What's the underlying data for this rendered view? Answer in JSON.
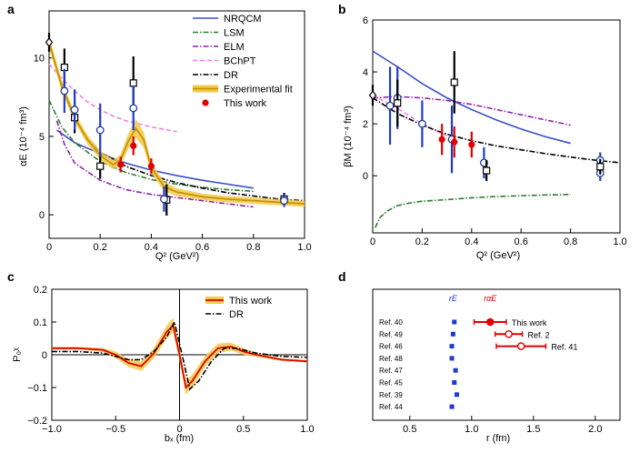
{
  "chart_data": [
    {
      "panel": "a",
      "type": "line",
      "xlabel": "Q² (GeV²)",
      "ylabel": "αE (10⁻⁴ fm³)",
      "xlim": [
        0,
        1.0
      ],
      "ylim": [
        -1.5,
        13
      ],
      "xticks": [
        0,
        0.2,
        0.4,
        0.6,
        0.8,
        1.0
      ],
      "xtick_labels": [
        "0",
        "0.2",
        "0.4",
        "0.6",
        "0.8",
        "1.0"
      ],
      "yticks": [
        0,
        5,
        10
      ],
      "ytick_labels": [
        "0",
        "5",
        "10"
      ],
      "legend": [
        "NRQCM",
        "LSM",
        "ELM",
        "BChPT",
        "DR",
        "Experimental fit",
        "This work"
      ],
      "legend_colors": [
        "#3a4fc6",
        "#2e7d32",
        "#8e24aa",
        "#ee82ee",
        "#000000",
        "#e6b800",
        "#e00000"
      ],
      "series": [
        {
          "name": "NRQCM",
          "style": "solid",
          "color": "#3a4fc6",
          "x": [
            0.03,
            0.1,
            0.2,
            0.3,
            0.4,
            0.5,
            0.6,
            0.7,
            0.8
          ],
          "y": [
            5.4,
            4.6,
            3.9,
            3.3,
            2.85,
            2.5,
            2.2,
            1.95,
            1.7
          ]
        },
        {
          "name": "LSM",
          "style": "dashdot",
          "color": "#2e7d32",
          "x": [
            0,
            0.05,
            0.1,
            0.2,
            0.3,
            0.4,
            0.5,
            0.6,
            0.7,
            0.8
          ],
          "y": [
            7.3,
            5.6,
            4.6,
            3.4,
            2.7,
            2.25,
            1.95,
            1.75,
            1.6,
            1.5
          ]
        },
        {
          "name": "ELM",
          "style": "dashdot",
          "color": "#8e24aa",
          "x": [
            0.03,
            0.06,
            0.1,
            0.2,
            0.3,
            0.4,
            0.5,
            0.6,
            0.7,
            0.8
          ],
          "y": [
            6.0,
            4.5,
            3.3,
            2.2,
            1.6,
            1.3,
            1.1,
            0.9,
            0.7,
            0.5
          ]
        },
        {
          "name": "BChPT",
          "style": "dash",
          "color": "#ee82ee",
          "x": [
            0,
            0.05,
            0.1,
            0.15,
            0.2,
            0.25,
            0.3,
            0.35,
            0.4,
            0.45,
            0.5
          ],
          "y": [
            9.6,
            8.7,
            7.9,
            7.2,
            6.7,
            6.3,
            6.0,
            5.8,
            5.6,
            5.45,
            5.3
          ]
        },
        {
          "name": "DR",
          "style": "dashdot",
          "color": "#000000",
          "x": [
            0,
            0.05,
            0.1,
            0.15,
            0.2,
            0.3,
            0.4,
            0.5,
            0.6,
            0.7,
            0.8,
            0.9,
            1.0
          ],
          "y": [
            11.0,
            8.1,
            6.1,
            4.8,
            4.0,
            3.1,
            2.5,
            2.05,
            1.7,
            1.4,
            1.2,
            1.0,
            0.9
          ]
        },
        {
          "name": "Experimental fit",
          "style": "band",
          "color": "#e6b800",
          "x": [
            0,
            0.05,
            0.1,
            0.15,
            0.2,
            0.25,
            0.28,
            0.31,
            0.34,
            0.37,
            0.4,
            0.45,
            0.5,
            0.6,
            0.7,
            0.8,
            0.9,
            1.0
          ],
          "y": [
            11.0,
            8.2,
            6.2,
            4.8,
            3.8,
            3.2,
            3.5,
            4.7,
            5.5,
            4.8,
            3.0,
            1.8,
            1.45,
            1.15,
            1.0,
            0.9,
            0.8,
            0.7
          ],
          "band_halfwidth": [
            0.4,
            0.35,
            0.3,
            0.3,
            0.3,
            0.3,
            0.35,
            0.5,
            0.6,
            0.5,
            0.35,
            0.3,
            0.25,
            0.2,
            0.2,
            0.2,
            0.2,
            0.2
          ]
        }
      ],
      "points": [
        {
          "name": "This work",
          "color": "#e00000",
          "x": [
            0.28,
            0.33,
            0.4
          ],
          "y": [
            3.2,
            4.4,
            3.1
          ],
          "err": [
            0.5,
            0.6,
            0.5
          ]
        },
        {
          "name": "Ref. squares",
          "marker": "square",
          "x": [
            0.06,
            0.1,
            0.2,
            0.33,
            0.46,
            0.92
          ],
          "y": [
            9.4,
            6.2,
            3.1,
            8.4,
            0.95,
            1.0
          ],
          "err": [
            1.2,
            1.0,
            0.8,
            1.7,
            1.0,
            0.4
          ]
        },
        {
          "name": "Ref. circles",
          "marker": "circle",
          "x": [
            0.06,
            0.1,
            0.2,
            0.33,
            0.45,
            0.92
          ],
          "y": [
            7.9,
            6.7,
            5.4,
            6.8,
            1.0,
            0.9
          ],
          "err": [
            1.4,
            1.3,
            1.7,
            1.4,
            0.8,
            0.4
          ]
        },
        {
          "name": "Ref. diamond",
          "marker": "diamond",
          "x": [
            0
          ],
          "y": [
            11.0
          ],
          "err": [
            0.6
          ]
        }
      ]
    },
    {
      "panel": "b",
      "type": "line",
      "xlabel": "Q² (GeV²)",
      "ylabel": "βM (10⁻⁴ fm³)",
      "xlim": [
        0,
        1.0
      ],
      "ylim": [
        -2.2,
        6
      ],
      "xticks": [
        0,
        0.2,
        0.4,
        0.6,
        0.8,
        1.0
      ],
      "xtick_labels": [
        "0",
        "0.2",
        "0.4",
        "0.6",
        "0.8",
        "1.0"
      ],
      "yticks": [
        0,
        2,
        4,
        6
      ],
      "ytick_labels": [
        "0",
        "2",
        "4",
        "6"
      ],
      "series": [
        {
          "name": "NRQCM",
          "style": "solid",
          "color": "#3a4fc6",
          "x": [
            0,
            0.1,
            0.2,
            0.3,
            0.4,
            0.5,
            0.6,
            0.7,
            0.8
          ],
          "y": [
            4.8,
            4.2,
            3.55,
            3.0,
            2.55,
            2.15,
            1.8,
            1.5,
            1.25
          ]
        },
        {
          "name": "LSM",
          "style": "dashdot",
          "color": "#2e7d32",
          "x": [
            0.01,
            0.03,
            0.06,
            0.1,
            0.15,
            0.2,
            0.3,
            0.4,
            0.5,
            0.6,
            0.7,
            0.8
          ],
          "y": [
            -2.0,
            -1.6,
            -1.35,
            -1.15,
            -1.05,
            -0.98,
            -0.92,
            -0.85,
            -0.8,
            -0.77,
            -0.74,
            -0.72
          ]
        },
        {
          "name": "ELM",
          "style": "dashdot",
          "color": "#8e24aa",
          "x": [
            0,
            0.1,
            0.2,
            0.3,
            0.4,
            0.5,
            0.6,
            0.7,
            0.8
          ],
          "y": [
            3.0,
            3.05,
            3.0,
            2.9,
            2.75,
            2.55,
            2.35,
            2.15,
            1.95
          ]
        },
        {
          "name": "BChPT",
          "style": "dash",
          "color": "#ee82ee",
          "x": [
            0,
            0.1,
            0.15,
            0.2,
            0.25,
            0.3,
            0.33
          ],
          "y": [
            3.1,
            2.6,
            2.3,
            2.0,
            1.75,
            1.55,
            1.45
          ]
        },
        {
          "name": "DR",
          "style": "dashdot",
          "color": "#000000",
          "x": [
            0,
            0.1,
            0.2,
            0.3,
            0.4,
            0.5,
            0.6,
            0.7,
            0.8,
            0.9,
            1.0
          ],
          "y": [
            3.0,
            2.4,
            1.95,
            1.6,
            1.35,
            1.15,
            1.0,
            0.85,
            0.72,
            0.6,
            0.5
          ]
        }
      ],
      "points": [
        {
          "name": "This work",
          "color": "#e00000",
          "x": [
            0.28,
            0.33,
            0.4
          ],
          "y": [
            1.4,
            1.3,
            1.2
          ],
          "err": [
            0.6,
            0.6,
            0.5
          ]
        },
        {
          "name": "Ref. circles",
          "marker": "circle",
          "x": [
            0.07,
            0.1,
            0.2,
            0.32,
            0.45,
            0.92,
            0.92
          ],
          "y": [
            2.7,
            3.0,
            2.0,
            1.4,
            0.5,
            0.6,
            0.1
          ],
          "err": [
            1.5,
            1.2,
            0.9,
            1.3,
            0.6,
            0.3,
            0.3
          ]
        },
        {
          "name": "Ref. squares",
          "marker": "square",
          "x": [
            0.1,
            0.33,
            0.46,
            0.92
          ],
          "y": [
            2.8,
            3.6,
            0.2,
            0.35
          ],
          "err": [
            0.9,
            1.2,
            0.4,
            0.3
          ]
        },
        {
          "name": "Ref. diamond",
          "marker": "diamond",
          "x": [
            0
          ],
          "y": [
            3.1
          ],
          "err": [
            0.4
          ]
        }
      ]
    },
    {
      "panel": "c",
      "type": "line",
      "xlabel": "bₓ (fm)",
      "ylabel": "P₀ᵡ",
      "xlim": [
        -1.0,
        1.0
      ],
      "ylim": [
        -0.2,
        0.2
      ],
      "xticks": [
        -1.0,
        -0.5,
        0,
        0.5,
        1.0
      ],
      "xtick_labels": [
        "−1.0",
        "−0.5",
        "0",
        "0.5",
        "1.0"
      ],
      "yticks": [
        -0.2,
        -0.1,
        0,
        0.1,
        0.2
      ],
      "ytick_labels": [
        "−0.2",
        "−0.1",
        "0",
        "0.1",
        "0.2"
      ],
      "legend": [
        "This work",
        "DR"
      ],
      "series": [
        {
          "name": "This work",
          "style": "band",
          "color": "#e00000",
          "x": [
            -1.0,
            -0.8,
            -0.6,
            -0.5,
            -0.4,
            -0.3,
            -0.2,
            -0.1,
            -0.05,
            0,
            0.05,
            0.1,
            0.2,
            0.3,
            0.4,
            0.5,
            0.6,
            0.8,
            1.0
          ],
          "y": [
            0.02,
            0.02,
            0.015,
            0.0,
            -0.025,
            -0.035,
            0.005,
            0.07,
            0.09,
            0.0,
            -0.1,
            -0.08,
            -0.02,
            0.02,
            0.025,
            0.01,
            0.0,
            -0.015,
            -0.02
          ],
          "band_halfwidth": [
            0.004,
            0.004,
            0.006,
            0.01,
            0.012,
            0.014,
            0.016,
            0.02,
            0.022,
            0.02,
            0.022,
            0.02,
            0.016,
            0.014,
            0.012,
            0.01,
            0.006,
            0.004,
            0.004
          ]
        },
        {
          "name": "DR",
          "style": "dashdot",
          "color": "#000000",
          "x": [
            -1.0,
            -0.8,
            -0.6,
            -0.5,
            -0.4,
            -0.3,
            -0.2,
            -0.1,
            -0.04,
            0.02,
            0.08,
            0.15,
            0.25,
            0.35,
            0.45,
            0.6,
            0.8,
            1.0
          ],
          "y": [
            0.01,
            0.01,
            0.005,
            -0.005,
            -0.015,
            -0.015,
            0.01,
            0.055,
            0.1,
            0.0,
            -0.105,
            -0.08,
            -0.02,
            0.02,
            0.02,
            0.005,
            -0.005,
            -0.008
          ]
        }
      ]
    },
    {
      "panel": "d",
      "type": "scatter",
      "xlabel": "r (fm)",
      "xlim": [
        0.2,
        2.2
      ],
      "xticks": [
        0.5,
        1.0,
        1.5,
        2.0
      ],
      "xtick_labels": [
        "0.5",
        "1.0",
        "1.5",
        "2.0"
      ],
      "column_labels": [
        "rE",
        "rαE"
      ],
      "row_labels": [
        "Ref. 40",
        "Ref. 49",
        "Ref. 46",
        "Ref. 48",
        "Ref. 47",
        "Ref. 45",
        "Ref. 39",
        "Ref. 44"
      ],
      "rE_values": [
        0.86,
        0.85,
        0.84,
        0.84,
        0.87,
        0.86,
        0.88,
        0.84
      ],
      "r_alpha_points": [
        {
          "label": "This work",
          "x": 1.15,
          "xerr": 0.13,
          "filled": true
        },
        {
          "label": "Ref. 2",
          "x": 1.3,
          "xerr": 0.11,
          "filled": false
        },
        {
          "label": "Ref. 41",
          "x": 1.4,
          "xerr": 0.2,
          "filled": false
        }
      ]
    }
  ],
  "panel_labels": [
    "a",
    "b",
    "c",
    "d"
  ]
}
